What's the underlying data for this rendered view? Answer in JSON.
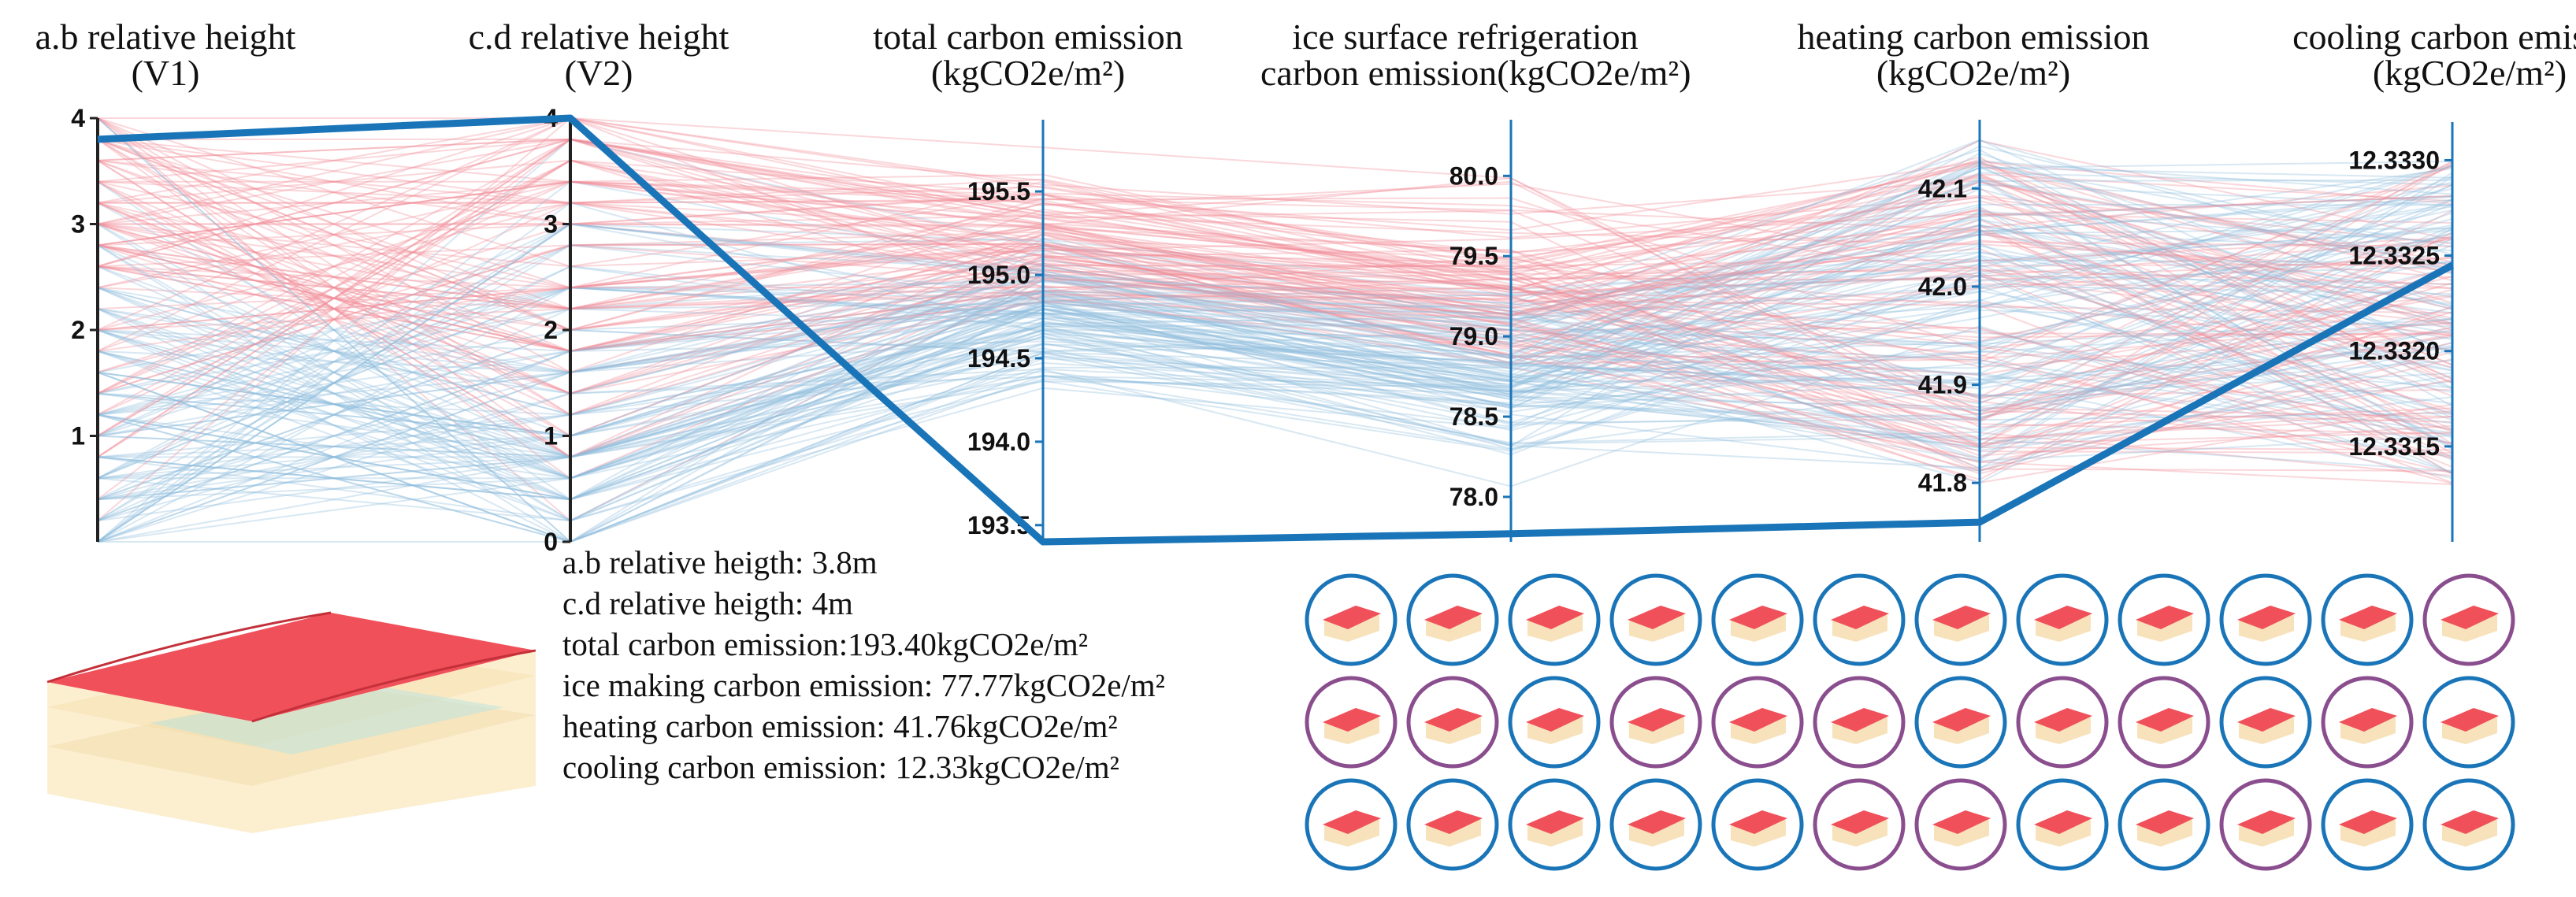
{
  "chart_data": {
    "type": "parallel_coordinates",
    "axes": [
      {
        "title": [
          "a.b relative height",
          "(V1)"
        ],
        "min": 0,
        "max": 4,
        "ticks": [
          "1",
          "2",
          "3",
          "4"
        ],
        "tick_values": [
          1,
          2,
          3,
          4
        ]
      },
      {
        "title": [
          "c.d relative height",
          "(V2)"
        ],
        "min": 0,
        "max": 4,
        "ticks": [
          "0",
          "1",
          "2",
          "3",
          "4"
        ],
        "tick_values": [
          0,
          1,
          2,
          3,
          4
        ]
      },
      {
        "title": [
          "total carbon emission",
          "(kgCO2e/m²)"
        ],
        "min": 193.4,
        "max": 195.93,
        "ticks": [
          "193.5",
          "194.0",
          "194.5",
          "195.0",
          "195.5"
        ],
        "tick_values": [
          193.5,
          194.0,
          194.5,
          195.0,
          195.5
        ]
      },
      {
        "title": [
          "ice surface refrigeration",
          "carbon emission(kgCO2e/m²)"
        ],
        "min": 77.72,
        "max": 80.35,
        "ticks": [
          "78.0",
          "78.5",
          "79.0",
          "79.5",
          "80.0"
        ],
        "tick_values": [
          78.0,
          78.5,
          79.0,
          79.5,
          80.0
        ]
      },
      {
        "title": [
          "heating carbon emission",
          "(kgCO2e/m²)"
        ],
        "min": 41.74,
        "max": 42.17,
        "ticks": [
          "41.8",
          "41.9",
          "42.0",
          "42.1"
        ],
        "tick_values": [
          41.8,
          41.9,
          42.0,
          42.1
        ]
      },
      {
        "title": [
          "cooling carbon emission",
          "(kgCO2e/m²)"
        ],
        "min": 12.331,
        "max": 12.3332,
        "ticks": [
          "12.3315",
          "12.3320",
          "12.3325",
          "12.3330"
        ],
        "tick_values": [
          12.3315,
          12.332,
          12.3325,
          12.333
        ]
      }
    ],
    "highlight": {
      "values": [
        3.8,
        4,
        193.4,
        77.77,
        41.76,
        12.33245
      ],
      "color": "#1a75b8"
    },
    "colors": {
      "high": "#f28b98",
      "low": "#8fbcdc"
    },
    "line_count": 220
  },
  "selected": {
    "lines": [
      "a.b relative heigth: 3.8m",
      "c.d relative heigth: 4m",
      "total carbon emission:193.40kgCO2e/m²",
      "ice making carbon emission: 77.77kgCO2e/m²",
      "heating carbon emission: 41.76kgCO2e/m²",
      "cooling carbon emission: 12.33kgCO2e/m²"
    ]
  },
  "thumbnails": {
    "rows": [
      [
        "#1a75b8",
        "#1a75b8",
        "#1a75b8",
        "#1a75b8",
        "#1a75b8",
        "#1a75b8",
        "#1a75b8",
        "#1a75b8",
        "#1a75b8",
        "#1a75b8",
        "#1a75b8",
        "#8a4e8e"
      ],
      [
        "#8a4e8e",
        "#8a4e8e",
        "#1a75b8",
        "#8a4e8e",
        "#8a4e8e",
        "#8a4e8e",
        "#1a75b8",
        "#8a4e8e",
        "#8a4e8e",
        "#1a75b8",
        "#8a4e8e",
        "#1a75b8"
      ],
      [
        "#1a75b8",
        "#1a75b8",
        "#1a75b8",
        "#1a75b8",
        "#1a75b8",
        "#8a4e8e",
        "#8a4e8e",
        "#1a75b8",
        "#1a75b8",
        "#8a4e8e",
        "#1a75b8",
        "#1a75b8"
      ]
    ]
  }
}
